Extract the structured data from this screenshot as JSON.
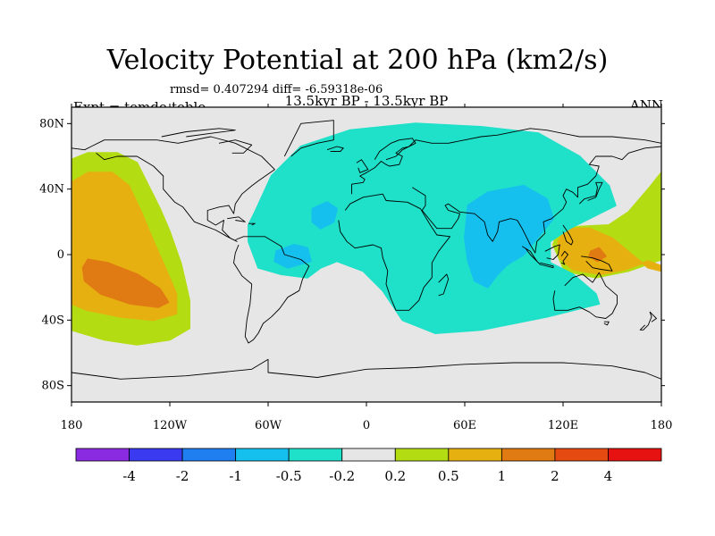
{
  "title": "Velocity Potential at 200 hPa (km2/s)",
  "stats": "rmsd= 0.407294 diff= -6.59318e-06",
  "subtitle": "13.5kyr BP - 13.5kyr BP",
  "left_label": "Expt = temdo-teblo",
  "right_label": "ANN",
  "map": {
    "projection": "cylindrical-equidistant",
    "lon_range": [
      -180,
      180
    ],
    "lat_range": [
      -90,
      90
    ],
    "background_color": "#e6e6e6",
    "coastline_color": "#000000",
    "lat_ticks": [
      {
        "value": 80,
        "label": "80N"
      },
      {
        "value": 40,
        "label": "40N"
      },
      {
        "value": 0,
        "label": "0"
      },
      {
        "value": -40,
        "label": "40S"
      },
      {
        "value": -80,
        "label": "80S"
      }
    ],
    "lon_ticks": [
      {
        "value": -180,
        "label": "180"
      },
      {
        "value": -120,
        "label": "120W"
      },
      {
        "value": -60,
        "label": "60W"
      },
      {
        "value": 0,
        "label": "0"
      },
      {
        "value": 60,
        "label": "60E"
      },
      {
        "value": 120,
        "label": "120E"
      },
      {
        "value": 180,
        "label": "180"
      }
    ]
  },
  "colorbar": {
    "colors": [
      "#8a2be2",
      "#3a3af0",
      "#1f7ff0",
      "#16c0ee",
      "#1fe0c8",
      "#e6e6e6",
      "#b4dc12",
      "#e6b010",
      "#e07a12",
      "#e54a10",
      "#e61212"
    ],
    "labels": [
      "-4",
      "-2",
      "-1",
      "-0.5",
      "-0.2",
      "0.2",
      "0.5",
      "1",
      "2",
      "4"
    ]
  },
  "fields": [
    {
      "name": "pacific-positive-outer",
      "color": "#b4dc12",
      "polygon": [
        [
          -180,
          58
        ],
        [
          -170,
          62
        ],
        [
          -152,
          62
        ],
        [
          -140,
          56
        ],
        [
          -132,
          40
        ],
        [
          -126,
          28
        ],
        [
          -120,
          14
        ],
        [
          -113,
          -6
        ],
        [
          -108,
          -28
        ],
        [
          -108,
          -45
        ],
        [
          -120,
          -52
        ],
        [
          -140,
          -55
        ],
        [
          -160,
          -52
        ],
        [
          -180,
          -46
        ]
      ]
    },
    {
      "name": "pacific-positive-mid",
      "color": "#e6b010",
      "polygon": [
        [
          -180,
          44
        ],
        [
          -170,
          50
        ],
        [
          -155,
          50
        ],
        [
          -145,
          42
        ],
        [
          -137,
          25
        ],
        [
          -130,
          8
        ],
        [
          -122,
          -10
        ],
        [
          -116,
          -24
        ],
        [
          -116,
          -36
        ],
        [
          -130,
          -40
        ],
        [
          -150,
          -38
        ],
        [
          -170,
          -34
        ],
        [
          -180,
          -30
        ]
      ]
    },
    {
      "name": "pacific-positive-core",
      "color": "#e07a12",
      "polygon": [
        [
          -170,
          -3
        ],
        [
          -158,
          -5
        ],
        [
          -140,
          -12
        ],
        [
          -126,
          -21
        ],
        [
          -121,
          -29
        ],
        [
          -127,
          -32
        ],
        [
          -144,
          -30
        ],
        [
          -162,
          -24
        ],
        [
          -172,
          -16
        ],
        [
          -173,
          -8
        ]
      ]
    },
    {
      "name": "western-pacific-positive-outer",
      "color": "#b4dc12",
      "polygon": [
        [
          180,
          50
        ],
        [
          172,
          40
        ],
        [
          160,
          26
        ],
        [
          148,
          18
        ],
        [
          130,
          17
        ],
        [
          117,
          15
        ],
        [
          114,
          6
        ],
        [
          121,
          -10
        ],
        [
          140,
          -14
        ],
        [
          160,
          -10
        ],
        [
          174,
          -5
        ],
        [
          180,
          -3
        ]
      ]
    },
    {
      "name": "western-pacific-positive-mid",
      "color": "#e6b010",
      "polygon": [
        [
          122,
          16
        ],
        [
          136,
          16
        ],
        [
          150,
          10
        ],
        [
          162,
          0
        ],
        [
          172,
          -8
        ],
        [
          180,
          -10
        ],
        [
          180,
          -7
        ],
        [
          172,
          -4
        ],
        [
          158,
          -9
        ],
        [
          143,
          -12
        ],
        [
          126,
          -9
        ],
        [
          118,
          -2
        ],
        [
          117,
          8
        ]
      ]
    },
    {
      "name": "western-pacific-positive-core",
      "color": "#e07a12",
      "polygon": [
        [
          137,
          2
        ],
        [
          142,
          4
        ],
        [
          146,
          -1
        ],
        [
          141,
          -4
        ],
        [
          136,
          -1
        ]
      ]
    },
    {
      "name": "global-negative",
      "color": "#1fe0c8",
      "polygon": [
        [
          -68,
          26
        ],
        [
          -58,
          48
        ],
        [
          -40,
          66
        ],
        [
          -10,
          76
        ],
        [
          30,
          80
        ],
        [
          70,
          78
        ],
        [
          105,
          74
        ],
        [
          130,
          60
        ],
        [
          148,
          42
        ],
        [
          152,
          30
        ],
        [
          140,
          24
        ],
        [
          124,
          16
        ],
        [
          112,
          8
        ],
        [
          112,
          -5
        ],
        [
          126,
          -12
        ],
        [
          140,
          -24
        ],
        [
          142,
          -30
        ],
        [
          110,
          -38
        ],
        [
          70,
          -46
        ],
        [
          42,
          -48
        ],
        [
          22,
          -40
        ],
        [
          10,
          -22
        ],
        [
          -2,
          -10
        ],
        [
          -18,
          -4
        ],
        [
          -28,
          -8
        ],
        [
          -36,
          -14
        ],
        [
          -52,
          -12
        ],
        [
          -66,
          -8
        ],
        [
          -72,
          8
        ],
        [
          -72,
          18
        ]
      ]
    },
    {
      "name": "atlantic-negative-north",
      "color": "#16c0ee",
      "polygon": [
        [
          -33,
          28
        ],
        [
          -24,
          32
        ],
        [
          -18,
          28
        ],
        [
          -20,
          20
        ],
        [
          -28,
          16
        ],
        [
          -33,
          20
        ]
      ]
    },
    {
      "name": "atlantic-negative-south",
      "color": "#16c0ee",
      "polygon": [
        [
          -55,
          2
        ],
        [
          -44,
          6
        ],
        [
          -36,
          4
        ],
        [
          -34,
          -4
        ],
        0,
        [
          -48,
          -8
        ],
        [
          -56,
          -4
        ]
      ]
    },
    {
      "name": "asia-negative",
      "color": "#16c0ee",
      "polygon": [
        [
          62,
          30
        ],
        [
          74,
          38
        ],
        [
          96,
          42
        ],
        [
          110,
          34
        ],
        [
          114,
          22
        ],
        [
          104,
          10
        ],
        [
          96,
          0
        ],
        [
          86,
          -6
        ],
        [
          80,
          -12
        ],
        [
          74,
          -20
        ],
        [
          66,
          -16
        ],
        [
          62,
          -4
        ],
        [
          60,
          10
        ]
      ]
    }
  ]
}
